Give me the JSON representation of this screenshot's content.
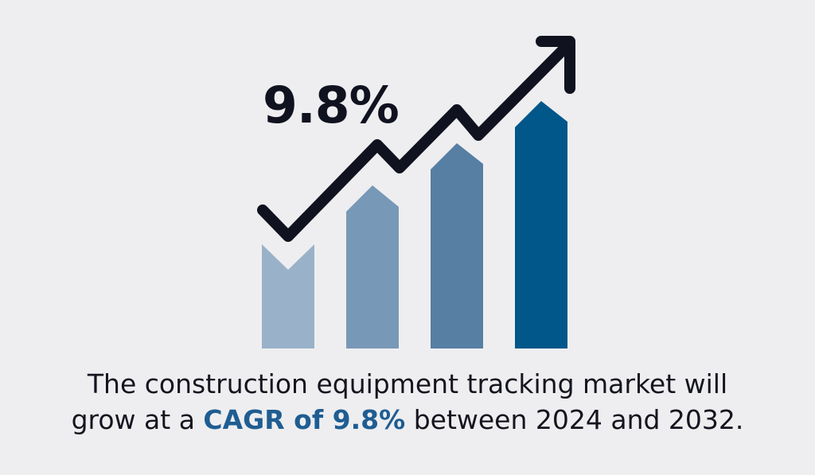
{
  "headline": {
    "value": "9.8%"
  },
  "caption": {
    "line1": "The construction equipment tracking market will",
    "line2_pre": "grow at a ",
    "line2_highlight": "CAGR of 9.8%",
    "line2_post": " between 2024 and 2032."
  },
  "colors": {
    "background": "#eeeef0",
    "bars": [
      "#99b2c9",
      "#7898b7",
      "#577ea3",
      "#01568a"
    ],
    "trend_line": "#10121f",
    "highlight_text": "#1f5d92"
  },
  "icons": {
    "trend": "upward-trend-arrow-icon"
  }
}
